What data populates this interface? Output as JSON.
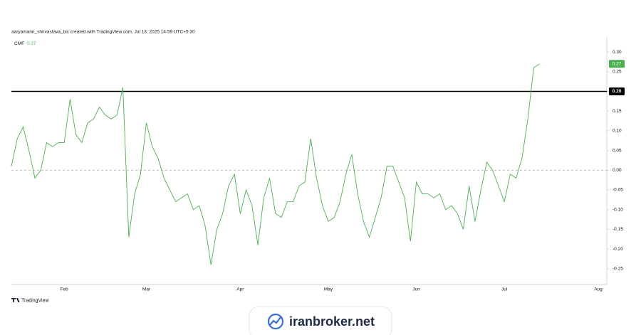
{
  "header": "aaryamann_shrivastava_bic created with TradingView.com, Jul 13, 2025 14:59 UTC+5:30",
  "brand": "TradingView",
  "watermark": "iranbroker.net",
  "chart_data": {
    "type": "line",
    "categories": [
      null,
      null,
      null,
      null,
      null,
      null,
      null,
      null,
      null,
      "Feb",
      null,
      null,
      null,
      null,
      null,
      null,
      null,
      null,
      null,
      null,
      null,
      null,
      null,
      "Mar",
      null,
      null,
      null,
      null,
      null,
      null,
      null,
      null,
      null,
      null,
      null,
      null,
      null,
      null,
      null,
      "Apr",
      null,
      null,
      null,
      null,
      null,
      null,
      null,
      null,
      null,
      null,
      null,
      null,
      null,
      null,
      "May",
      null,
      null,
      null,
      null,
      null,
      null,
      null,
      null,
      null,
      null,
      null,
      null,
      null,
      null,
      "Jun",
      null,
      null,
      null,
      null,
      null,
      null,
      null,
      null,
      null,
      null,
      null,
      null,
      null,
      null,
      "Jul",
      null,
      null,
      null,
      null,
      null,
      null,
      null,
      null,
      null,
      null,
      null,
      null,
      null,
      null,
      null,
      "Aug"
    ],
    "series": [
      {
        "name": "CMF",
        "color": "#4caf50",
        "values": [
          0.01,
          0.08,
          0.11,
          0.05,
          -0.02,
          0,
          0.07,
          0.06,
          0.07,
          0.07,
          0.18,
          0.09,
          0.07,
          0.12,
          0.13,
          0.16,
          0.14,
          0.13,
          0.14,
          0.21,
          -0.17,
          -0.06,
          -0.01,
          0.12,
          0.06,
          0.03,
          -0.02,
          -0.05,
          -0.08,
          -0.07,
          -0.06,
          -0.1,
          -0.09,
          -0.14,
          -0.24,
          -0.15,
          -0.11,
          -0.04,
          -0.01,
          -0.11,
          -0.05,
          -0.09,
          -0.19,
          -0.07,
          -0.02,
          -0.11,
          -0.12,
          -0.08,
          -0.08,
          -0.04,
          -0.03,
          0.08,
          -0.02,
          -0.09,
          -0.13,
          -0.12,
          -0.08,
          -0.01,
          0.04,
          -0.06,
          -0.13,
          -0.17,
          -0.12,
          -0.07,
          0.01,
          0.01,
          -0.03,
          -0.07,
          -0.18,
          -0.03,
          -0.06,
          -0.06,
          -0.07,
          -0.06,
          -0.1,
          -0.09,
          -0.11,
          -0.15,
          -0.04,
          -0.13,
          -0.05,
          0.02,
          0,
          -0.04,
          -0.08,
          -0.01,
          -0.02,
          0.03,
          0.13,
          0.26,
          0.27,
          null,
          null,
          null,
          null,
          null,
          null,
          null,
          null,
          null,
          null
        ]
      }
    ],
    "ylim": [
      -0.29,
      0.32
    ],
    "yticks": [
      {
        "value": 0.3,
        "label": "0.30"
      },
      {
        "value": 0.25,
        "label": "0.25"
      },
      {
        "value": 0.2,
        "label": "0.20"
      },
      {
        "value": 0.15,
        "label": "0.15"
      },
      {
        "value": 0.1,
        "label": "0.10"
      },
      {
        "value": 0.05,
        "label": "0.05"
      },
      {
        "value": 0,
        "label": "0.00"
      },
      {
        "value": -0.05,
        "label": "-0.05"
      },
      {
        "value": -0.1,
        "label": "-0.10"
      },
      {
        "value": -0.15,
        "label": "-0.15"
      },
      {
        "value": -0.2,
        "label": "-0.20"
      },
      {
        "value": -0.25,
        "label": "-0.25"
      }
    ],
    "hline": {
      "value": 0.2,
      "label": "0.20",
      "color": "#000000"
    },
    "zero_line": true
  }
}
